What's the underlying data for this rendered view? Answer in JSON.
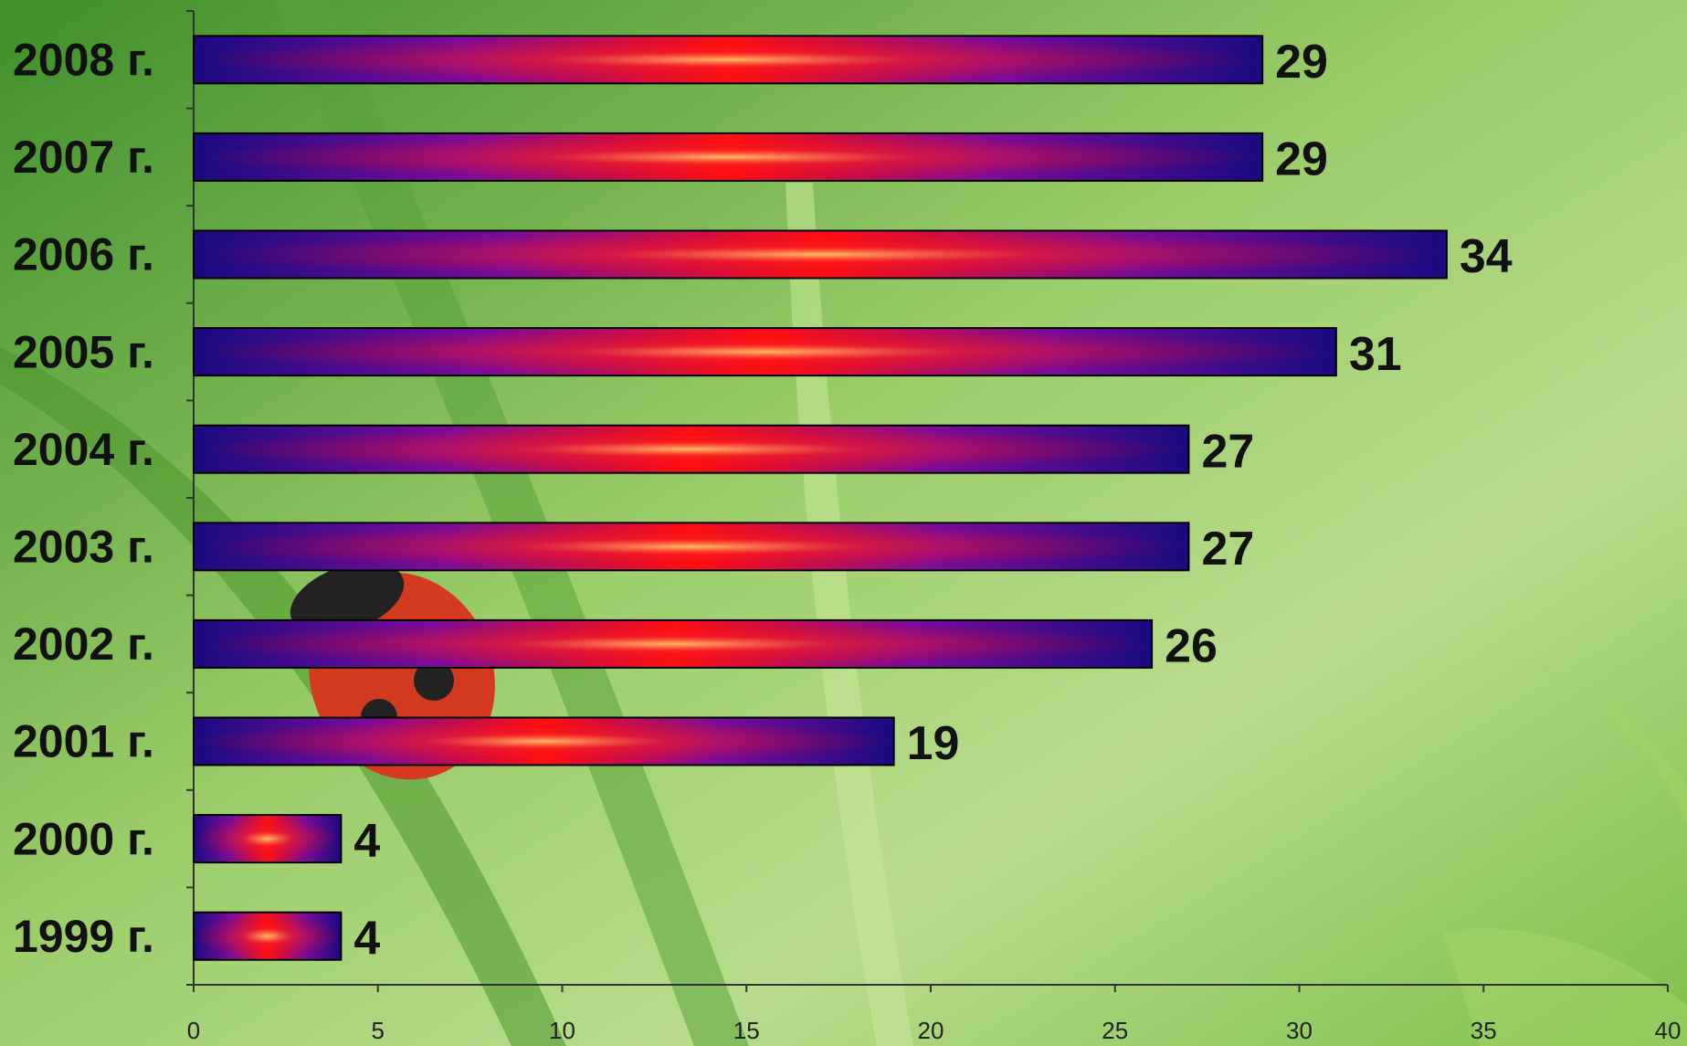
{
  "chart_data": {
    "type": "bar",
    "orientation": "horizontal",
    "categories": [
      "2008 г.",
      "2007 г.",
      "2006 г.",
      "2005 г.",
      "2004 г.",
      "2003 г.",
      "2002 г.",
      "2001 г.",
      "2000 г.",
      "1999 г."
    ],
    "values": [
      29,
      29,
      34,
      31,
      27,
      27,
      26,
      19,
      4,
      4
    ],
    "xlim": [
      0,
      40
    ],
    "xticks": [
      0,
      5,
      10,
      15,
      20,
      25,
      30,
      35,
      40
    ]
  }
}
